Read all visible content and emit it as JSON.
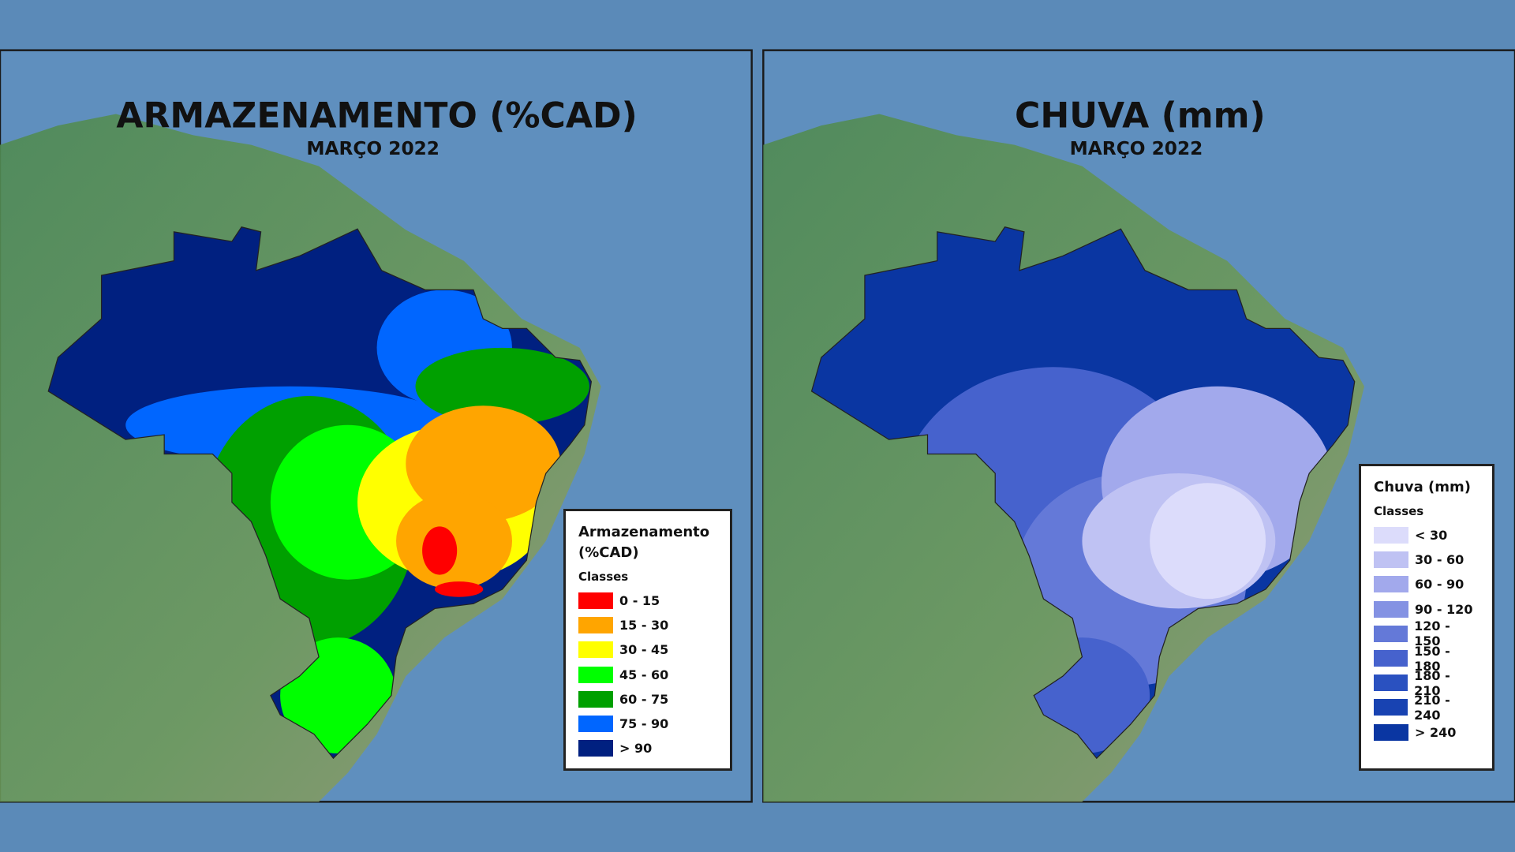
{
  "panels": [
    {
      "title": "ARMAZENAMENTO (%CAD)",
      "subtitle": "MARÇO 2022",
      "legend": {
        "title": "Armazenamento (%CAD)",
        "subtitle": "Classes",
        "items": [
          {
            "label": "0 - 15",
            "color": "#ff0000"
          },
          {
            "label": "15 - 30",
            "color": "#ffa500"
          },
          {
            "label": "30 - 45",
            "color": "#ffff00"
          },
          {
            "label": "45 - 60",
            "color": "#00ff00"
          },
          {
            "label": "60 - 75",
            "color": "#00a000"
          },
          {
            "label": "75 - 90",
            "color": "#0066ff"
          },
          {
            "label": "> 90",
            "color": "#002080"
          }
        ]
      }
    },
    {
      "title": "CHUVA (mm)",
      "subtitle": "MARÇO 2022",
      "legend": {
        "title": "Chuva (mm)",
        "subtitle": "Classes",
        "items": [
          {
            "label": "< 30",
            "color": "#dcdcfb"
          },
          {
            "label": "30 - 60",
            "color": "#bfc2f3"
          },
          {
            "label": "60 - 90",
            "color": "#a2a9ec"
          },
          {
            "label": "90 - 120",
            "color": "#8492e3"
          },
          {
            "label": "120 - 150",
            "color": "#6479d8"
          },
          {
            "label": "150 - 180",
            "color": "#4662cd"
          },
          {
            "label": "180 - 210",
            "color": "#2a51c0"
          },
          {
            "label": "210 - 240",
            "color": "#1843b2"
          },
          {
            "label": "> 240",
            "color": "#0a36a2"
          }
        ]
      }
    }
  ]
}
